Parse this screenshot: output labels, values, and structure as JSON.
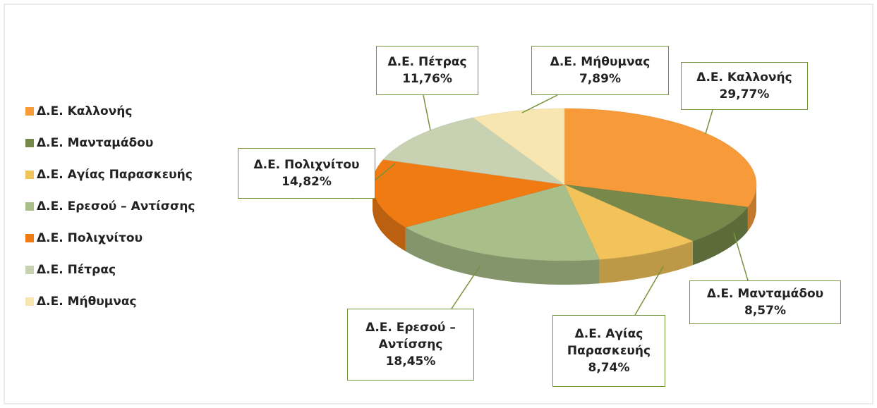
{
  "chart_data": {
    "type": "pie",
    "categories": [
      "Δ.Ε. Καλλονής",
      "Δ.Ε. Μανταμάδου",
      "Δ.Ε. Αγίας Παρασκευής",
      "Δ.Ε. Ερεσού – Αντίσσης",
      "Δ.Ε. Πολιχνίτου",
      "Δ.Ε. Πέτρας",
      "Δ.Ε. Μήθυμνας"
    ],
    "values": [
      29.77,
      8.57,
      8.74,
      18.45,
      14.82,
      11.76,
      7.89
    ],
    "value_labels": [
      "29,77%",
      "8,57%",
      "8,74%",
      "18,45%",
      "14,82%",
      "11,76%",
      "7,89%"
    ],
    "colors": [
      "#f79b3a",
      "#76894a",
      "#f2c35a",
      "#a9bf8a",
      "#f07b12",
      "#c9d1b3",
      "#f8e6b0"
    ],
    "legend": "left"
  }
}
